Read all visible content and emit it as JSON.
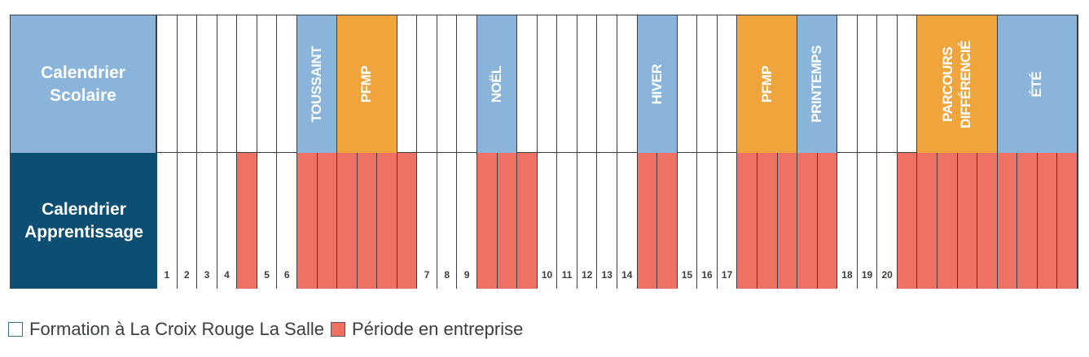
{
  "row_labels": {
    "school": "Calendrier Scolaire",
    "apprenticeship": "Calendrier Apprentissage"
  },
  "colors": {
    "school_header": "#8ab4da",
    "apprentice_header": "#0d4f73",
    "vacation": "#8ab4da",
    "pfmp": "#f0a53c",
    "entreprise": "#ee7163",
    "formation": "#ffffff"
  },
  "weeks": [
    {
      "n": "1",
      "t": "f"
    },
    {
      "n": "2",
      "t": "f"
    },
    {
      "n": "3",
      "t": "f"
    },
    {
      "n": "4",
      "t": "f"
    },
    {
      "n": "",
      "t": "e"
    },
    {
      "n": "5",
      "t": "f"
    },
    {
      "n": "6",
      "t": "f"
    },
    {
      "n": "",
      "t": "e"
    },
    {
      "n": "",
      "t": "e"
    },
    {
      "n": "",
      "t": "e"
    },
    {
      "n": "",
      "t": "e"
    },
    {
      "n": "",
      "t": "e"
    },
    {
      "n": "",
      "t": "e"
    },
    {
      "n": "7",
      "t": "f"
    },
    {
      "n": "8",
      "t": "f"
    },
    {
      "n": "9",
      "t": "f"
    },
    {
      "n": "",
      "t": "e"
    },
    {
      "n": "",
      "t": "e"
    },
    {
      "n": "",
      "t": "e"
    },
    {
      "n": "10",
      "t": "f"
    },
    {
      "n": "11",
      "t": "f"
    },
    {
      "n": "12",
      "t": "f"
    },
    {
      "n": "13",
      "t": "f"
    },
    {
      "n": "14",
      "t": "f"
    },
    {
      "n": "",
      "t": "e"
    },
    {
      "n": "",
      "t": "e"
    },
    {
      "n": "15",
      "t": "f"
    },
    {
      "n": "16",
      "t": "f"
    },
    {
      "n": "17",
      "t": "f"
    },
    {
      "n": "",
      "t": "e"
    },
    {
      "n": "",
      "t": "e"
    },
    {
      "n": "",
      "t": "e"
    },
    {
      "n": "",
      "t": "e"
    },
    {
      "n": "",
      "t": "e"
    },
    {
      "n": "18",
      "t": "f"
    },
    {
      "n": "19",
      "t": "f"
    },
    {
      "n": "20",
      "t": "f"
    },
    {
      "n": "",
      "t": "e"
    },
    {
      "n": "",
      "t": "e"
    },
    {
      "n": "",
      "t": "e"
    },
    {
      "n": "",
      "t": "e"
    },
    {
      "n": "",
      "t": "e"
    },
    {
      "n": "",
      "t": "e"
    },
    {
      "n": "",
      "t": "e"
    },
    {
      "n": "",
      "t": "e"
    },
    {
      "n": "",
      "t": "e"
    }
  ],
  "periods": [
    {
      "label": "TOUSSAINT",
      "type": "vacation",
      "start_week": 7,
      "weeks": 2
    },
    {
      "label": "PFMP",
      "type": "pfmp",
      "start_week": 9,
      "weeks": 3
    },
    {
      "label": "NOËL",
      "type": "vacation",
      "start_week": 16,
      "weeks": 2
    },
    {
      "label": "HIVER",
      "type": "vacation",
      "start_week": 24,
      "weeks": 2
    },
    {
      "label": "PFMP",
      "type": "pfmp",
      "start_week": 29,
      "weeks": 3
    },
    {
      "label": "PRINTEMPS",
      "type": "vacation",
      "start_week": 32,
      "weeks": 2
    },
    {
      "label": "PARCOURS DIFFÉRENCIÉ",
      "type": "pfmp",
      "start_week": 38,
      "weeks": 4
    },
    {
      "label": "ÉTÉ",
      "type": "vacation",
      "start_week": 42,
      "weeks": 4
    }
  ],
  "legend": {
    "formation": "Formation à La Croix Rouge La Salle",
    "entreprise": "Période en entreprise"
  }
}
